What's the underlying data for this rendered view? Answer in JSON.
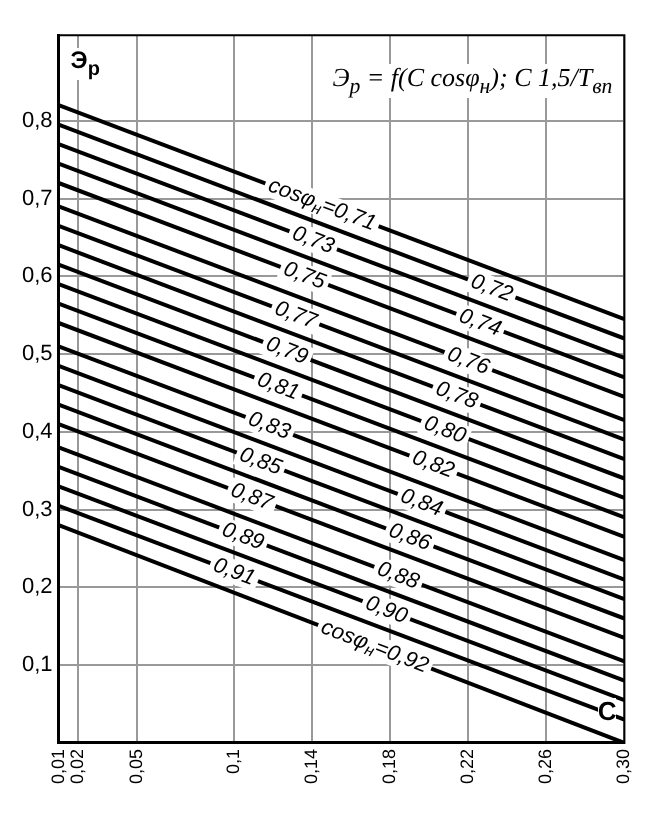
{
  "chart_data": {
    "type": "line",
    "title": "Э$_{р}$ = f(C cosφ$_{н}$);  C 1,5/T$_{вп}$",
    "xlabel": "C",
    "ylabel": "Э$_{р}$",
    "x": [
      0.01,
      0.3
    ],
    "xlim": [
      0.01,
      0.3
    ],
    "xticks": [
      {
        "value": 0.01,
        "label": "0,01"
      },
      {
        "value": 0.02,
        "label": "0,02"
      },
      {
        "value": 0.05,
        "label": "0,05"
      },
      {
        "value": 0.1,
        "label": "0,1"
      },
      {
        "value": 0.14,
        "label": "0,14"
      },
      {
        "value": 0.18,
        "label": "0,18"
      },
      {
        "value": 0.22,
        "label": "0,22"
      },
      {
        "value": 0.26,
        "label": "0,26"
      },
      {
        "value": 0.3,
        "label": "0,30"
      }
    ],
    "ylim": [
      0,
      0.91
    ],
    "yticks": [
      {
        "value": 0.1,
        "label": "0,1"
      },
      {
        "value": 0.2,
        "label": "0,2"
      },
      {
        "value": 0.3,
        "label": "0,3"
      },
      {
        "value": 0.4,
        "label": "0,4"
      },
      {
        "value": 0.5,
        "label": "0,5"
      },
      {
        "value": 0.6,
        "label": "0,6"
      },
      {
        "value": 0.7,
        "label": "0,7"
      },
      {
        "value": 0.8,
        "label": "0,8"
      }
    ],
    "grid": true,
    "legend": false,
    "marker": "none",
    "line_style": "solid",
    "series": [
      {
        "name": "cosφ$_{н}$=0,71",
        "color": "#000000",
        "values": [
          0.82,
          0.545
        ]
      },
      {
        "name": "0,72",
        "color": "#000000",
        "values": [
          0.795,
          0.52
        ]
      },
      {
        "name": "0,73",
        "color": "#000000",
        "values": [
          0.77,
          0.495
        ]
      },
      {
        "name": "0,74",
        "color": "#000000",
        "values": [
          0.745,
          0.47
        ]
      },
      {
        "name": "0,75",
        "color": "#000000",
        "values": [
          0.72,
          0.445
        ]
      },
      {
        "name": "0,76",
        "color": "#000000",
        "values": [
          0.69,
          0.415
        ]
      },
      {
        "name": "0,77",
        "color": "#000000",
        "values": [
          0.665,
          0.39
        ]
      },
      {
        "name": "0,78",
        "color": "#000000",
        "values": [
          0.64,
          0.365
        ]
      },
      {
        "name": "0,79",
        "color": "#000000",
        "values": [
          0.615,
          0.34
        ]
      },
      {
        "name": "0,80",
        "color": "#000000",
        "values": [
          0.59,
          0.315
        ]
      },
      {
        "name": "0,81",
        "color": "#000000",
        "values": [
          0.565,
          0.29
        ]
      },
      {
        "name": "0,82",
        "color": "#000000",
        "values": [
          0.54,
          0.265
        ]
      },
      {
        "name": "0,83",
        "color": "#000000",
        "values": [
          0.51,
          0.235
        ]
      },
      {
        "name": "0,84",
        "color": "#000000",
        "values": [
          0.485,
          0.21
        ]
      },
      {
        "name": "0,85",
        "color": "#000000",
        "values": [
          0.46,
          0.185
        ]
      },
      {
        "name": "0,86",
        "color": "#000000",
        "values": [
          0.435,
          0.16
        ]
      },
      {
        "name": "0,87",
        "color": "#000000",
        "values": [
          0.41,
          0.135
        ]
      },
      {
        "name": "0,88",
        "color": "#000000",
        "values": [
          0.38,
          0.105
        ]
      },
      {
        "name": "0,89",
        "color": "#000000",
        "values": [
          0.355,
          0.08
        ]
      },
      {
        "name": "0,90",
        "color": "#000000",
        "values": [
          0.33,
          0.055
        ]
      },
      {
        "name": "0,91",
        "color": "#000000",
        "values": [
          0.305,
          0.03
        ]
      },
      {
        "name": "cosφ$_{н}$=0,92",
        "color": "#000000",
        "values": [
          0.28,
          0
        ]
      }
    ]
  }
}
